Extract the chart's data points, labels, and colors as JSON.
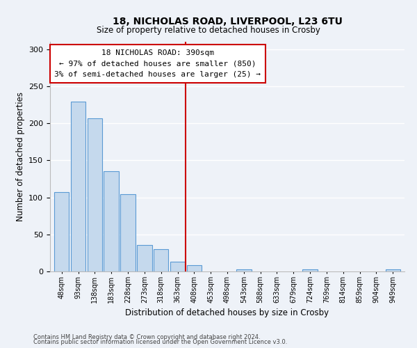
{
  "title1": "18, NICHOLAS ROAD, LIVERPOOL, L23 6TU",
  "title2": "Size of property relative to detached houses in Crosby",
  "xlabel": "Distribution of detached houses by size in Crosby",
  "ylabel": "Number of detached properties",
  "bar_labels": [
    "48sqm",
    "93sqm",
    "138sqm",
    "183sqm",
    "228sqm",
    "273sqm",
    "318sqm",
    "363sqm",
    "408sqm",
    "453sqm",
    "498sqm",
    "543sqm",
    "588sqm",
    "633sqm",
    "679sqm",
    "724sqm",
    "769sqm",
    "814sqm",
    "859sqm",
    "904sqm",
    "949sqm"
  ],
  "bar_values": [
    107,
    229,
    207,
    135,
    104,
    36,
    30,
    13,
    8,
    0,
    0,
    3,
    0,
    0,
    0,
    3,
    0,
    0,
    0,
    0,
    3
  ],
  "bar_color": "#c5d9ed",
  "bar_edge_color": "#5a9ad4",
  "property_line_index": 8,
  "annotation_line1": "18 NICHOLAS ROAD: 390sqm",
  "annotation_line2": "← 97% of detached houses are smaller (850)",
  "annotation_line3": "3% of semi-detached houses are larger (25) →",
  "annotation_box_color": "#ffffff",
  "annotation_box_edge": "#cc0000",
  "property_line_color": "#cc0000",
  "ylim": [
    0,
    310
  ],
  "yticks": [
    0,
    50,
    100,
    150,
    200,
    250,
    300
  ],
  "footer1": "Contains HM Land Registry data © Crown copyright and database right 2024.",
  "footer2": "Contains public sector information licensed under the Open Government Licence v3.0.",
  "bg_color": "#eef2f8"
}
